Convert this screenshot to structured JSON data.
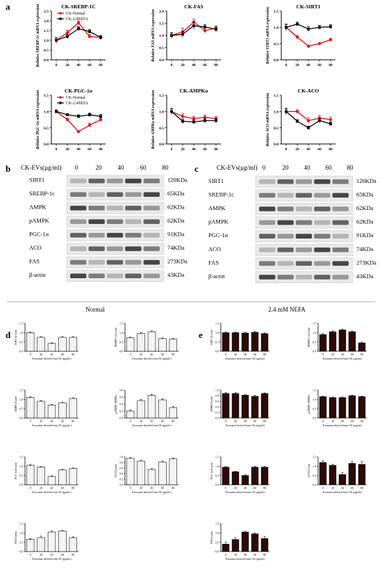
{
  "panel_letters": [
    "a",
    "b",
    "c",
    "d",
    "e"
  ],
  "blot_axis_label": "CK-EVs(µg/ml)",
  "blot_doses": [
    "0",
    "20",
    "40",
    "60",
    "80"
  ],
  "section_titles": {
    "normal": "Normal",
    "nefa": "2.4 mM NEFA"
  },
  "bar_xlabel": "Exosomes derived from CK (µg/mL)",
  "blots": {
    "b": [
      {
        "name": "SIRT1",
        "size": "120KDa"
      },
      {
        "name": "SREBP-1c",
        "size": "65KDa"
      },
      {
        "name": "AMPK",
        "size": "62KDa"
      },
      {
        "name": "pAMPK",
        "size": "62KDa"
      },
      {
        "name": "PGC-1α",
        "size": "91KDa"
      },
      {
        "name": "ACO",
        "size": "74KDa"
      },
      {
        "name": "FAS",
        "size": "273KDa"
      },
      {
        "name": "β-actin",
        "size": "43KDa"
      }
    ],
    "c": [
      {
        "name": "SIRT1",
        "size": "120KDa"
      },
      {
        "name": "SREBP-1c",
        "size": "65KDa"
      },
      {
        "name": "AMPK",
        "size": "62KDa"
      },
      {
        "name": "pAMPK",
        "size": "62KDa"
      },
      {
        "name": "PGC-1α",
        "size": "91KDa"
      },
      {
        "name": "ACO",
        "size": "74KDa"
      },
      {
        "name": "FAS",
        "size": "273KDa"
      },
      {
        "name": "β-actin",
        "size": "43KDa"
      }
    ]
  },
  "colors": {
    "normal": "#e8141b",
    "nefa": "#111111",
    "bar_nefa": "#2b0a08",
    "bar_normal_fill": "#ffffff"
  },
  "chart_data": [
    {
      "type": "line",
      "panel": "a",
      "title": "CK-SREBP-1C",
      "ylabel": "Relative SREBP-1c mRNA expression",
      "x": [
        "0",
        "20",
        "40",
        "60",
        "80"
      ],
      "ylim": [
        0.0,
        2.5
      ],
      "yticks": [
        "0.0",
        "0.5",
        "1.0",
        "1.5",
        "2.0",
        "2.5"
      ],
      "legend": [
        "CK-Normal",
        "CK-2.4NEFA"
      ],
      "series": [
        {
          "name": "CK-Normal",
          "values": [
            1.0,
            1.4,
            1.9,
            1.2,
            1.15
          ],
          "err": [
            0.15,
            0.12,
            0.1,
            0.1,
            0.1
          ]
        },
        {
          "name": "CK-2.4NEFA",
          "values": [
            1.0,
            1.2,
            1.6,
            1.45,
            1.15
          ],
          "err": [
            0.12,
            0.1,
            0.1,
            0.1,
            0.1
          ]
        }
      ]
    },
    {
      "type": "line",
      "panel": "a",
      "title": "CK-FAS",
      "ylabel": "Relative FAS mRNA expression",
      "x": [
        "0",
        "20",
        "40",
        "60",
        "80"
      ],
      "ylim": [
        0.0,
        2.0
      ],
      "yticks": [
        "0.0",
        "0.5",
        "1.0",
        "1.5",
        "2.0"
      ],
      "series": [
        {
          "name": "CK-Normal",
          "values": [
            1.0,
            1.15,
            1.55,
            1.2,
            1.3
          ],
          "err": [
            0.12,
            0.15,
            0.12,
            0.1,
            0.1
          ]
        },
        {
          "name": "CK-2.4NEFA",
          "values": [
            1.0,
            1.05,
            1.4,
            1.35,
            1.25
          ],
          "err": [
            0.1,
            0.12,
            0.15,
            0.1,
            0.1
          ]
        }
      ]
    },
    {
      "type": "line",
      "panel": "a",
      "title": "CK-SIRT1",
      "ylabel": "Relative STRT1 mRNA expression",
      "x": [
        "0",
        "20",
        "40",
        "60",
        "80"
      ],
      "ylim": [
        0.0,
        1.5
      ],
      "yticks": [
        "0.0",
        "0.5",
        "1.0",
        "1.5"
      ],
      "series": [
        {
          "name": "CK-Normal",
          "values": [
            1.0,
            0.7,
            0.42,
            0.5,
            0.62
          ],
          "err": [
            0.08,
            0.05,
            0.03,
            0.03,
            0.04
          ]
        },
        {
          "name": "CK-2.4NEFA",
          "values": [
            1.0,
            1.1,
            0.95,
            1.0,
            1.02
          ],
          "err": [
            0.1,
            0.06,
            0.08,
            0.06,
            0.06
          ]
        }
      ]
    },
    {
      "type": "line",
      "panel": "a",
      "title": "CK-PGC-1α",
      "ylabel": "Relative PGC-1α mRNA expression",
      "x": [
        "0",
        "20",
        "40",
        "60",
        "80"
      ],
      "ylim": [
        0.0,
        1.5
      ],
      "yticks": [
        "0.0",
        "0.5",
        "1.0",
        "1.5"
      ],
      "legend": [
        "CK-Normal",
        "CK-2.4NEFA"
      ],
      "series": [
        {
          "name": "CK-Normal",
          "values": [
            1.0,
            0.75,
            0.38,
            0.58,
            0.75
          ],
          "err": [
            0.05,
            0.05,
            0.03,
            0.06,
            0.06
          ]
        },
        {
          "name": "CK-2.4NEFA",
          "values": [
            1.0,
            0.9,
            0.85,
            0.9,
            0.85
          ],
          "err": [
            0.05,
            0.04,
            0.05,
            0.05,
            0.06
          ]
        }
      ]
    },
    {
      "type": "line",
      "panel": "a",
      "title": "CK-AMPKα",
      "ylabel": "Relative AMPKα mRNA expression",
      "x": [
        "0",
        "20",
        "40",
        "60",
        "80"
      ],
      "ylim": [
        0.0,
        1.5
      ],
      "yticks": [
        "0.0",
        "0.5",
        "1.0",
        "1.5"
      ],
      "series": [
        {
          "name": "CK-Normal",
          "values": [
            1.0,
            0.85,
            0.78,
            0.82,
            0.78
          ],
          "err": [
            0.1,
            0.08,
            0.07,
            0.07,
            0.07
          ]
        },
        {
          "name": "CK-2.4NEFA",
          "values": [
            1.0,
            0.7,
            0.68,
            0.72,
            0.72
          ],
          "err": [
            0.08,
            0.07,
            0.06,
            0.06,
            0.06
          ]
        }
      ]
    },
    {
      "type": "line",
      "panel": "a",
      "title": "CK-ACO",
      "ylabel": "Relative ACO mRNA expression",
      "x": [
        "0",
        "20",
        "40",
        "60",
        "80"
      ],
      "ylim": [
        0.0,
        1.5
      ],
      "yticks": [
        "0.0",
        "0.5",
        "1.0",
        "1.5"
      ],
      "series": [
        {
          "name": "CK-Normal",
          "values": [
            1.0,
            1.0,
            0.72,
            0.8,
            0.75
          ],
          "err": [
            0.1,
            0.05,
            0.08,
            0.08,
            0.08
          ]
        },
        {
          "name": "CK-2.4NEFA",
          "values": [
            1.0,
            0.7,
            0.5,
            0.72,
            0.62
          ],
          "err": [
            0.08,
            0.05,
            0.05,
            0.06,
            0.06
          ]
        }
      ]
    },
    {
      "type": "bar",
      "panel": "d",
      "ylabel": "SIRT1/β-actin",
      "categories": [
        "0",
        "20",
        "40",
        "60",
        "80"
      ],
      "values": [
        1.0,
        0.75,
        0.42,
        0.75,
        0.75
      ],
      "err": [
        0.04,
        0.04,
        0.03,
        0.04,
        0.04
      ],
      "ylim": [
        0.0,
        1.5
      ],
      "yticks": [
        "0.0",
        "0.5",
        "1.0",
        "1.5"
      ]
    },
    {
      "type": "bar",
      "panel": "d",
      "ylabel": "SREBP-1c/β-actin",
      "categories": [
        "0",
        "20",
        "40",
        "60",
        "80"
      ],
      "values": [
        0.72,
        0.95,
        1.05,
        0.68,
        0.65
      ],
      "err": [
        0.04,
        0.05,
        0.04,
        0.03,
        0.03
      ],
      "ylim": [
        0.0,
        1.5
      ],
      "yticks": [
        "0.0",
        "0.5",
        "1.0",
        "1.5"
      ]
    },
    {
      "type": "bar",
      "panel": "d",
      "ylabel": "AMPK/β-actin",
      "categories": [
        "0",
        "20",
        "40",
        "60",
        "80"
      ],
      "values": [
        1.1,
        0.9,
        0.7,
        0.82,
        1.05
      ],
      "err": [
        0.04,
        0.04,
        0.04,
        0.04,
        0.04
      ],
      "ylim": [
        0.0,
        1.5
      ],
      "yticks": [
        "0.0",
        "0.5",
        "1.0",
        "1.5"
      ]
    },
    {
      "type": "bar",
      "panel": "d",
      "ylabel": "pAMPK/AMPKα",
      "categories": [
        "0",
        "20",
        "40",
        "60",
        "80"
      ],
      "values": [
        0.2,
        0.5,
        0.65,
        0.52,
        0.3
      ],
      "err": [
        0.03,
        0.03,
        0.03,
        0.03,
        0.03
      ],
      "ylim": [
        0.0,
        0.8
      ],
      "yticks": [
        "0.0",
        "0.2",
        "0.4",
        "0.6",
        "0.8"
      ]
    },
    {
      "type": "bar",
      "panel": "d",
      "ylabel": "PGC-1α/β-actin",
      "categories": [
        "0",
        "20",
        "40",
        "60",
        "80"
      ],
      "values": [
        1.05,
        0.95,
        0.45,
        0.8,
        0.88
      ],
      "err": [
        0.03,
        0.03,
        0.03,
        0.03,
        0.03
      ],
      "ylim": [
        0.0,
        1.5
      ],
      "yticks": [
        "0.0",
        "0.5",
        "1.0",
        "1.5"
      ]
    },
    {
      "type": "bar",
      "panel": "d",
      "ylabel": "ACO/β-actin",
      "categories": [
        "0",
        "20",
        "40",
        "60",
        "80"
      ],
      "values": [
        0.95,
        0.85,
        0.55,
        0.82,
        0.93
      ],
      "err": [
        0.03,
        0.03,
        0.03,
        0.03,
        0.03
      ],
      "ylim": [
        0.0,
        1.0
      ],
      "yticks": [
        "0.0",
        "0.2",
        "0.4",
        "0.6",
        "0.8",
        "1.0"
      ]
    },
    {
      "type": "bar",
      "panel": "d",
      "ylabel": "FAS/β-actin",
      "categories": [
        "0",
        "20",
        "40",
        "60",
        "80"
      ],
      "values": [
        0.65,
        0.75,
        1.05,
        1.1,
        0.75
      ],
      "err": [
        0.05,
        0.08,
        0.05,
        0.04,
        0.04
      ],
      "ylim": [
        0.0,
        1.5
      ],
      "yticks": [
        "0.0",
        "0.5",
        "1.0",
        "1.5"
      ]
    },
    {
      "type": "bar",
      "panel": "e",
      "ylabel": "SIRT1/β-actin",
      "categories": [
        "0",
        "20",
        "40",
        "60",
        "80"
      ],
      "values": [
        1.0,
        1.0,
        0.98,
        1.02,
        0.95
      ],
      "err": [
        0.05,
        0.04,
        0.04,
        0.05,
        0.04
      ],
      "ylim": [
        0.0,
        1.5
      ],
      "yticks": [
        "0.0",
        "0.5",
        "1.0",
        "1.5"
      ]
    },
    {
      "type": "bar",
      "panel": "e",
      "ylabel": "SREBP-1c/β-actin",
      "categories": [
        "0",
        "20",
        "40",
        "60",
        "80"
      ],
      "values": [
        0.9,
        1.05,
        1.15,
        1.05,
        0.45
      ],
      "err": [
        0.05,
        0.05,
        0.05,
        0.04,
        0.04
      ],
      "ylim": [
        0.0,
        1.5
      ],
      "yticks": [
        "0.0",
        "0.5",
        "1.0",
        "1.5"
      ]
    },
    {
      "type": "bar",
      "panel": "e",
      "ylabel": "AMPK/β-actin",
      "categories": [
        "0",
        "20",
        "40",
        "60",
        "80"
      ],
      "values": [
        0.88,
        0.88,
        0.82,
        0.78,
        0.88
      ],
      "err": [
        0.03,
        0.03,
        0.03,
        0.03,
        0.02
      ],
      "ylim": [
        0.0,
        1.0
      ],
      "yticks": [
        "0.0",
        "0.2",
        "0.4",
        "0.6",
        "0.8",
        "1.0"
      ]
    },
    {
      "type": "bar",
      "panel": "e",
      "ylabel": "pAMPK/AMPKα",
      "categories": [
        "0",
        "20",
        "40",
        "60",
        "80"
      ],
      "values": [
        1.15,
        1.1,
        1.1,
        1.2,
        1.15
      ],
      "err": [
        0.03,
        0.03,
        0.03,
        0.03,
        0.03
      ],
      "ylim": [
        0.0,
        1.5
      ],
      "yticks": [
        "0.0",
        "0.5",
        "1.0",
        "1.5"
      ]
    },
    {
      "type": "bar",
      "panel": "e",
      "ylabel": "PGC-1α/β-actin",
      "categories": [
        "0",
        "20",
        "40",
        "60",
        "80"
      ],
      "values": [
        0.95,
        0.7,
        0.5,
        0.95,
        0.95
      ],
      "err": [
        0.03,
        0.03,
        0.03,
        0.04,
        0.04
      ],
      "ylim": [
        0.0,
        1.5
      ],
      "yticks": [
        "0.0",
        "0.5",
        "1.0",
        "1.5"
      ]
    },
    {
      "type": "bar",
      "panel": "e",
      "ylabel": "ACO/β-actin",
      "categories": [
        "0",
        "20",
        "40",
        "60",
        "80"
      ],
      "values": [
        1.2,
        1.05,
        0.55,
        1.15,
        1.1
      ],
      "err": [
        0.1,
        0.05,
        0.1,
        0.1,
        0.15
      ],
      "ylim": [
        0.0,
        1.5
      ],
      "yticks": [
        "0.0",
        "0.5",
        "1.0",
        "1.5"
      ]
    },
    {
      "type": "bar",
      "panel": "e",
      "ylabel": "FAS/β-actin",
      "categories": [
        "0",
        "20",
        "40",
        "60",
        "80"
      ],
      "values": [
        0.4,
        0.65,
        1.05,
        0.95,
        0.7
      ],
      "err": [
        0.1,
        0.1,
        0.04,
        0.05,
        0.1
      ],
      "ylim": [
        0.0,
        1.5
      ],
      "yticks": [
        "0.0",
        "0.5",
        "1.0",
        "1.5"
      ]
    }
  ]
}
